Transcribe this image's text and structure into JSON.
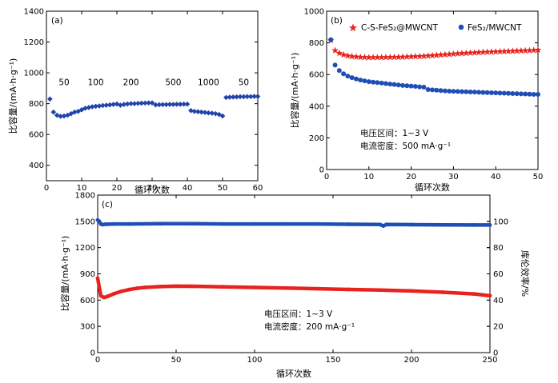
{
  "chart_data": [
    {
      "id": "a",
      "type": "scatter",
      "panel_label": "(a)",
      "xlabel": "循环次数",
      "ylabel": "比容量/(mA·h·g⁻¹)",
      "xlim": [
        0,
        60
      ],
      "ylim": [
        300,
        1400
      ],
      "xticks": [
        0,
        10,
        20,
        30,
        40,
        50,
        60
      ],
      "yticks": [
        400,
        600,
        800,
        1000,
        1200,
        1400
      ],
      "rate_labels": [
        {
          "text": "50",
          "x": 5,
          "y": 920
        },
        {
          "text": "100",
          "x": 14,
          "y": 920
        },
        {
          "text": "200",
          "x": 24,
          "y": 920
        },
        {
          "text": "500",
          "x": 36,
          "y": 920
        },
        {
          "text": "1000",
          "x": 46,
          "y": 920
        },
        {
          "text": "50",
          "x": 56,
          "y": 920
        }
      ],
      "series": [
        {
          "color": "#2244aa",
          "marker": "diamond",
          "x": [
            1,
            2,
            3,
            4,
            5,
            6,
            7,
            8,
            9,
            10,
            11,
            12,
            13,
            14,
            15,
            16,
            17,
            18,
            19,
            20,
            21,
            22,
            23,
            24,
            25,
            26,
            27,
            28,
            29,
            30,
            31,
            32,
            33,
            34,
            35,
            36,
            37,
            38,
            39,
            40,
            41,
            42,
            43,
            44,
            45,
            46,
            47,
            48,
            49,
            50,
            51,
            52,
            53,
            54,
            55,
            56,
            57,
            58,
            59,
            60
          ],
          "y": [
            830,
            745,
            725,
            718,
            720,
            725,
            735,
            745,
            750,
            760,
            770,
            775,
            780,
            783,
            785,
            788,
            790,
            792,
            795,
            798,
            790,
            795,
            798,
            800,
            800,
            802,
            803,
            804,
            805,
            805,
            792,
            793,
            794,
            794,
            795,
            795,
            796,
            796,
            797,
            797,
            755,
            750,
            748,
            745,
            743,
            740,
            738,
            735,
            730,
            720,
            840,
            842,
            843,
            844,
            845,
            845,
            846,
            846,
            847,
            847
          ]
        }
      ]
    },
    {
      "id": "b",
      "type": "scatter",
      "panel_label": "(b)",
      "xlabel": "循环次数",
      "ylabel": "比容量/(mA·h·g⁻¹)",
      "xlim": [
        0,
        50
      ],
      "ylim": [
        0,
        1000
      ],
      "xticks": [
        0,
        10,
        20,
        30,
        40,
        50
      ],
      "yticks": [
        0,
        200,
        400,
        600,
        800,
        1000
      ],
      "annotations": [
        "电压区间：1~3 V",
        "电流密度：500 mA·g⁻¹"
      ],
      "legend_position": "top",
      "series": [
        {
          "name": "C-S-FeS₂@MWCNT",
          "color": "#e8221e",
          "marker": "star",
          "x": [
            1,
            2,
            3,
            4,
            5,
            6,
            7,
            8,
            9,
            10,
            11,
            12,
            13,
            14,
            15,
            16,
            17,
            18,
            19,
            20,
            21,
            22,
            23,
            24,
            25,
            26,
            27,
            28,
            29,
            30,
            31,
            32,
            33,
            34,
            35,
            36,
            37,
            38,
            39,
            40,
            41,
            42,
            43,
            44,
            45,
            46,
            47,
            48,
            49,
            50
          ],
          "y": [
            815,
            752,
            735,
            725,
            718,
            714,
            712,
            710,
            709,
            708,
            708,
            708,
            708,
            709,
            709,
            710,
            710,
            711,
            712,
            713,
            714,
            715,
            716,
            718,
            720,
            722,
            724,
            726,
            728,
            730,
            732,
            734,
            735,
            737,
            738,
            740,
            741,
            742,
            743,
            744,
            745,
            746,
            747,
            748,
            749,
            750,
            751,
            752,
            753,
            755
          ]
        },
        {
          "name": "FeS₂/MWCNT",
          "color": "#1f4fb5",
          "marker": "circle",
          "x": [
            1,
            2,
            3,
            4,
            5,
            6,
            7,
            8,
            9,
            10,
            11,
            12,
            13,
            14,
            15,
            16,
            17,
            18,
            19,
            20,
            21,
            22,
            23,
            24,
            25,
            26,
            27,
            28,
            29,
            30,
            31,
            32,
            33,
            34,
            35,
            36,
            37,
            38,
            39,
            40,
            41,
            42,
            43,
            44,
            45,
            46,
            47,
            48,
            49,
            50
          ],
          "y": [
            820,
            660,
            625,
            605,
            590,
            580,
            572,
            565,
            560,
            555,
            552,
            549,
            546,
            543,
            540,
            537,
            534,
            531,
            529,
            527,
            525,
            522,
            520,
            505,
            503,
            501,
            499,
            497,
            495,
            494,
            493,
            492,
            491,
            490,
            489,
            488,
            487,
            486,
            485,
            484,
            483,
            482,
            481,
            480,
            479,
            478,
            477,
            476,
            475,
            475
          ]
        }
      ]
    },
    {
      "id": "c",
      "type": "line",
      "panel_label": "(c)",
      "xlabel": "循环次数",
      "ylabel": "比容量/(mA·h·g⁻¹)",
      "y2label": "库伦效率/%",
      "xlim": [
        0,
        250
      ],
      "ylim": [
        0,
        1800
      ],
      "y2lim": [
        0,
        120
      ],
      "xticks": [
        0,
        50,
        100,
        150,
        200,
        250
      ],
      "yticks": [
        0,
        300,
        600,
        900,
        1200,
        1500,
        1800
      ],
      "y2ticks": [
        0,
        20,
        40,
        60,
        80,
        100
      ],
      "annotations": [
        "电压区间：1~3 V",
        "电流密度：200 mA·g⁻¹"
      ],
      "series": [
        {
          "axis": "left",
          "color": "#e8221e",
          "x": [
            0,
            2,
            4,
            6,
            8,
            10,
            15,
            20,
            25,
            30,
            40,
            50,
            60,
            80,
            100,
            120,
            140,
            160,
            180,
            200,
            220,
            240,
            250
          ],
          "y": [
            850,
            650,
            630,
            640,
            655,
            670,
            700,
            720,
            735,
            745,
            755,
            760,
            758,
            752,
            745,
            738,
            730,
            722,
            715,
            705,
            690,
            670,
            650
          ]
        },
        {
          "axis": "right",
          "color": "#1f4fb5",
          "x": [
            0,
            1,
            2,
            3,
            5,
            10,
            20,
            40,
            60,
            80,
            100,
            120,
            140,
            160,
            180,
            182,
            184,
            200,
            220,
            240,
            250
          ],
          "y": [
            101,
            100,
            98,
            97.5,
            97.8,
            98,
            98,
            98.2,
            98.2,
            98,
            98,
            98,
            98,
            97.8,
            97.6,
            96.5,
            97.6,
            97.5,
            97.3,
            97.2,
            97.2
          ]
        }
      ]
    }
  ]
}
